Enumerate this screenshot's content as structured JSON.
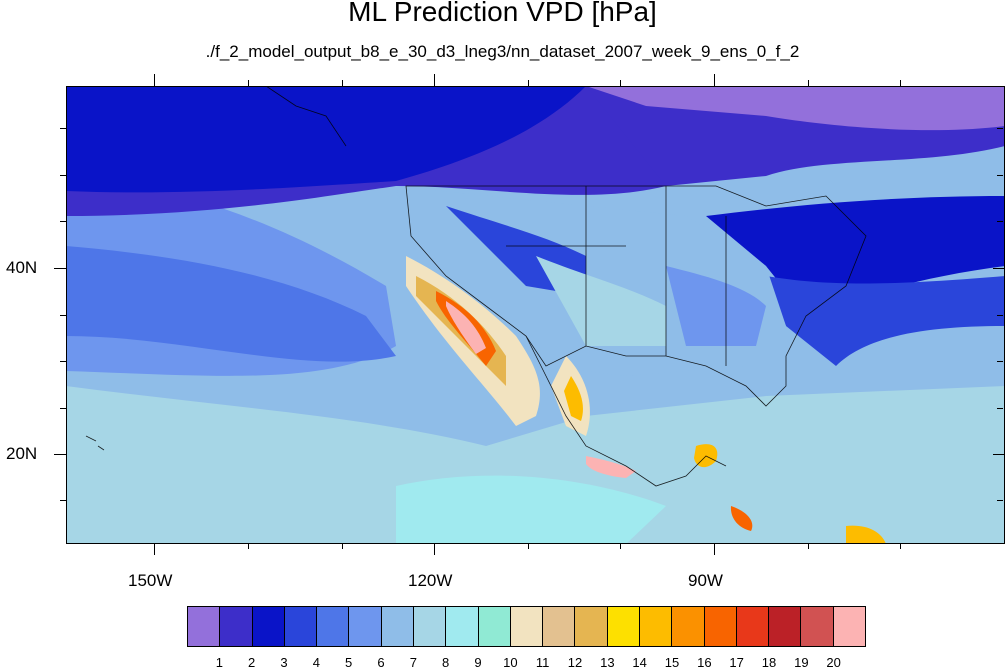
{
  "title": "ML Prediction VPD [hPa]",
  "subtitle": "./f_2_model_output_b8_e_30_d3_lneg3/nn_dataset_2007_week_9_ens_0_f_2",
  "lon_labels": [
    "150W",
    "120W",
    "90W"
  ],
  "lat_labels": [
    "40N",
    "20N"
  ],
  "colorbar": {
    "levels": [
      "1",
      "2",
      "3",
      "4",
      "5",
      "6",
      "7",
      "8",
      "9",
      "10",
      "11",
      "12",
      "13",
      "14",
      "15",
      "16",
      "17",
      "18",
      "19",
      "20"
    ],
    "colors": [
      "#9370db",
      "#3d2ec9",
      "#0a14c8",
      "#2a45da",
      "#4e76e8",
      "#6e96ee",
      "#8fbde8",
      "#a6d6e6",
      "#a0eaef",
      "#90ead4",
      "#f2e3c0",
      "#e3c190",
      "#e5b551",
      "#fde000",
      "#fdbc00",
      "#fb9100",
      "#f86400",
      "#e8381a",
      "#bb2127",
      "#d15252",
      "#fcb3b3"
    ]
  }
}
